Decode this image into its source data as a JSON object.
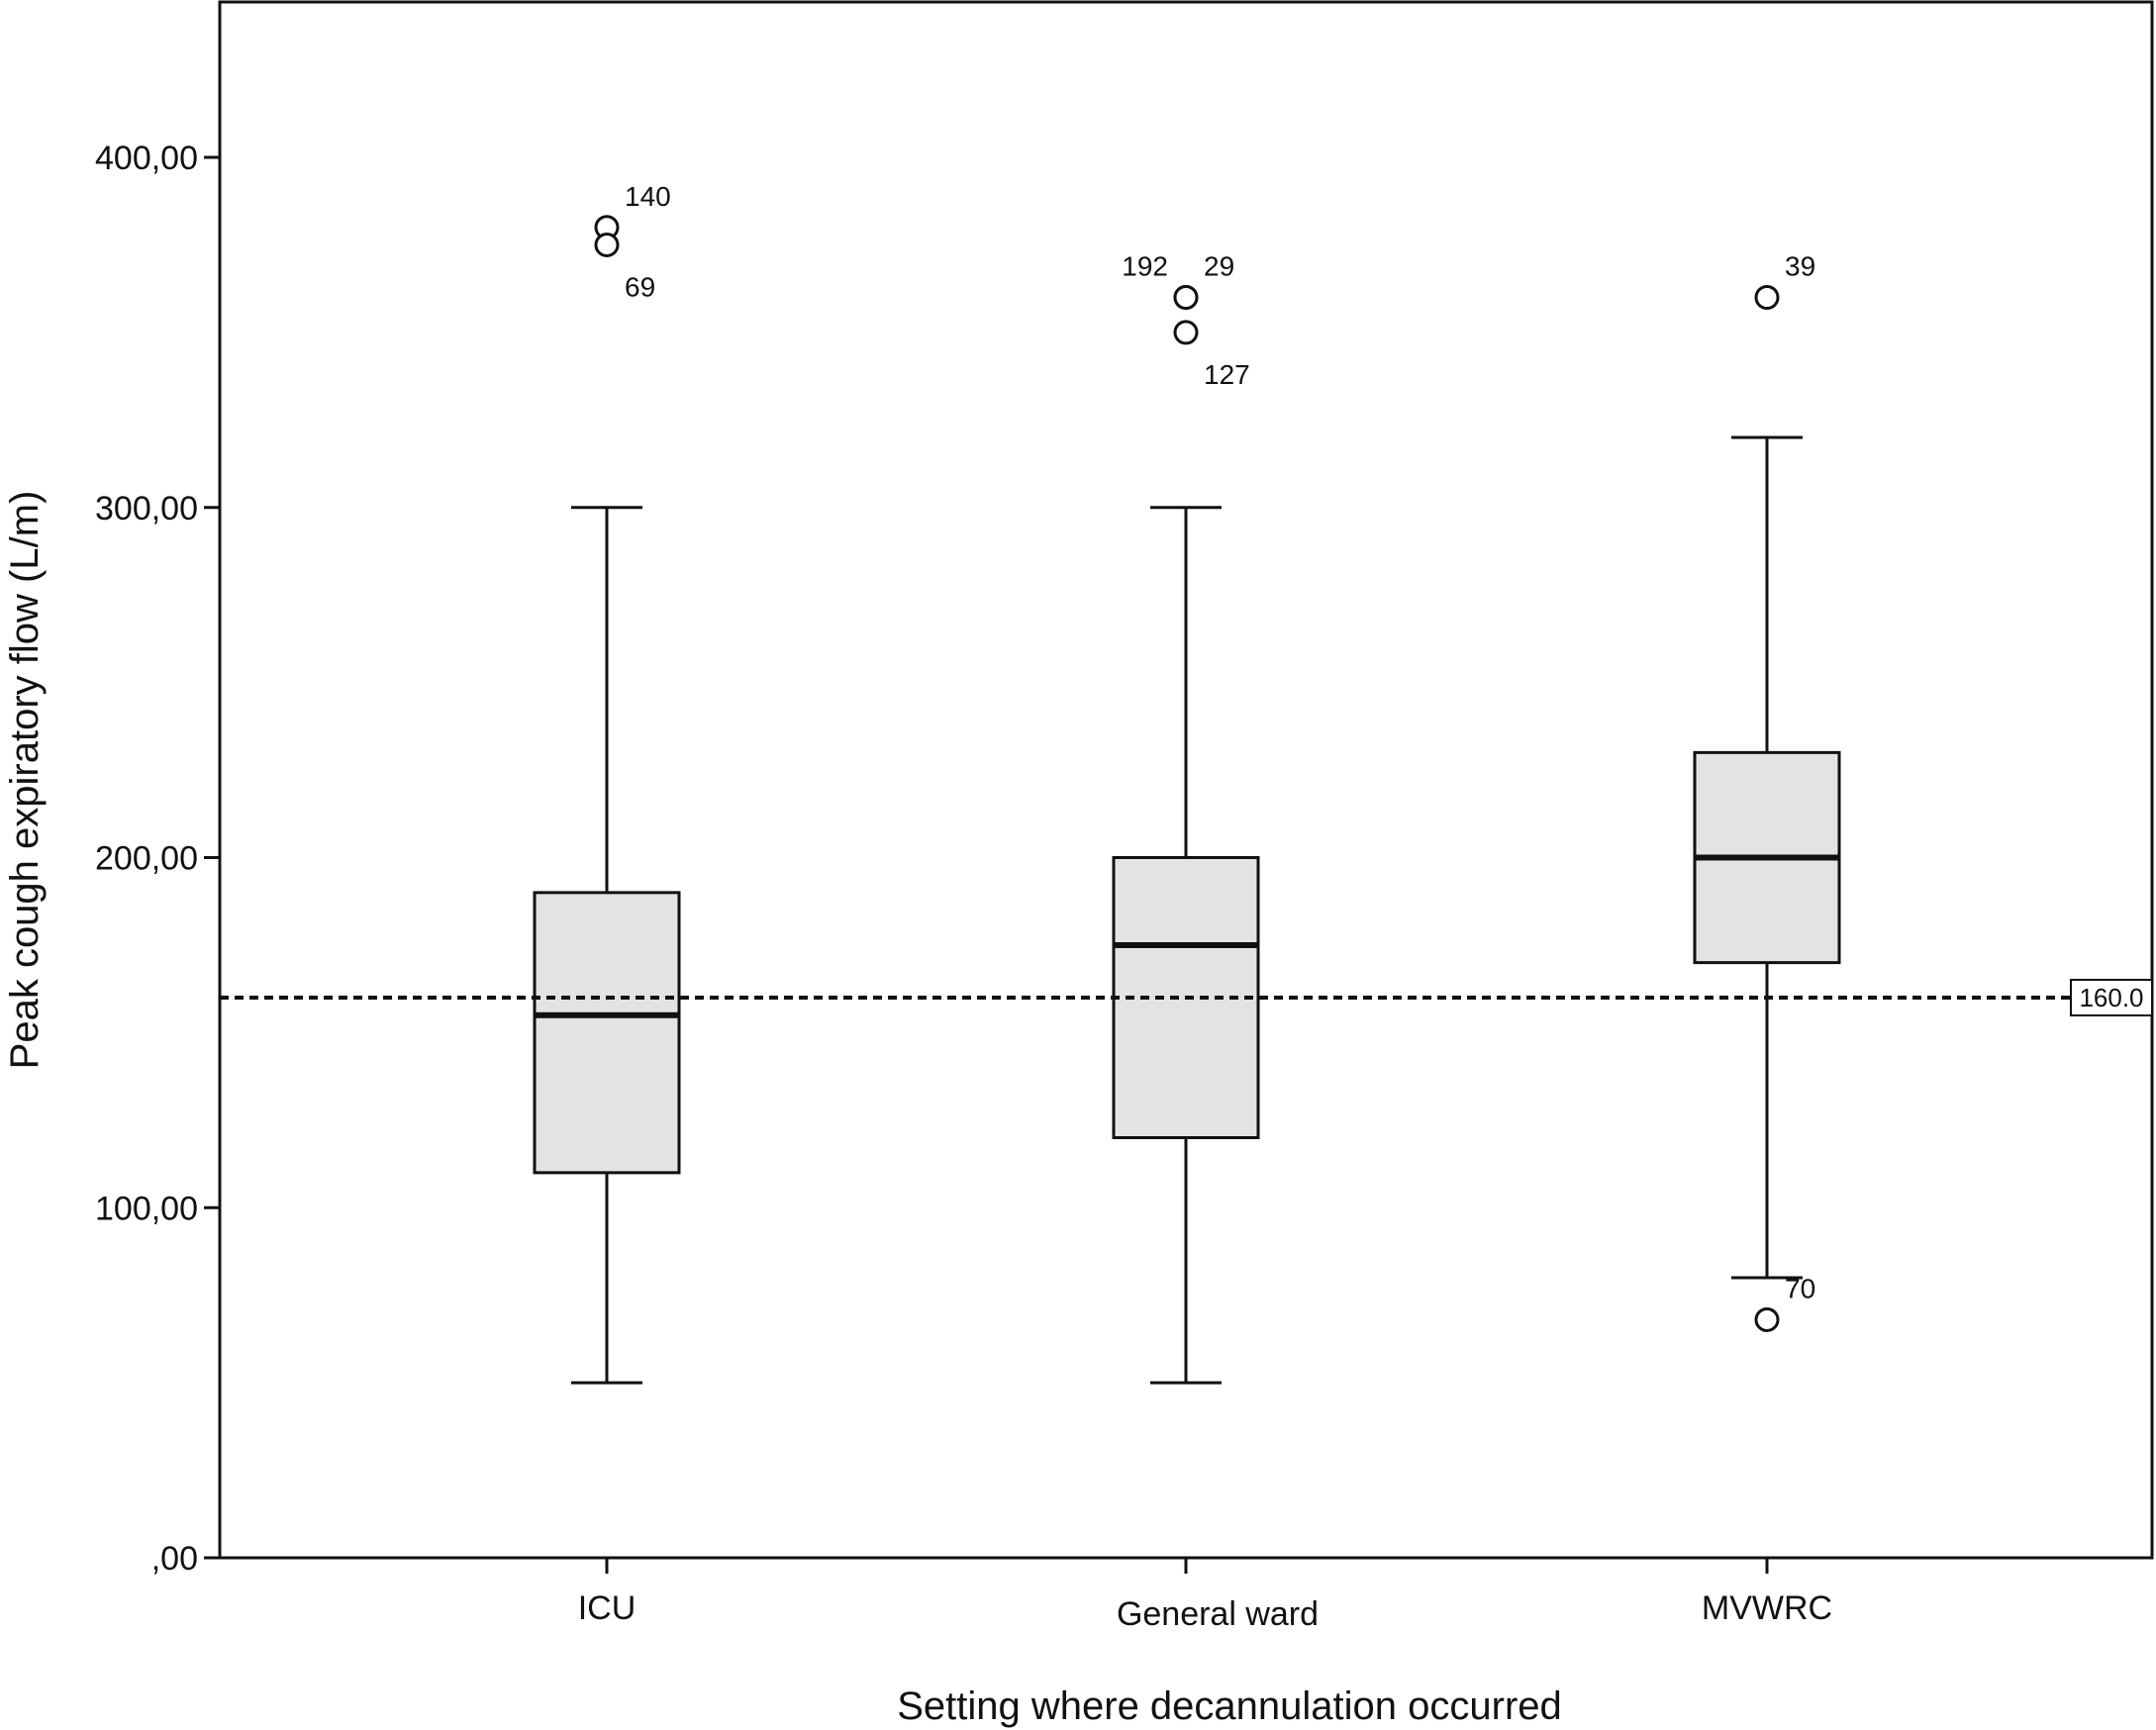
{
  "chart_data": {
    "type": "boxplot",
    "xlabel": "Setting where decannulation occurred",
    "ylabel": "Peak cough expiratory flow (L/m)",
    "ylim": [
      0,
      445
    ],
    "yticks": [
      0,
      100,
      200,
      300,
      400
    ],
    "ytick_labels": [
      ",00",
      "100,00",
      "200,00",
      "300,00",
      "400,00"
    ],
    "grid": false,
    "box_fill": "#e3e3e3",
    "line_color": "#111111",
    "categories": [
      "ICU",
      "General ward",
      "MVWRC"
    ],
    "boxes": [
      {
        "category": "ICU",
        "whisker_low": 50,
        "q1": 110,
        "median": 155,
        "q3": 190,
        "whisker_high": 300,
        "outliers": [
          {
            "value": 380,
            "label": "140",
            "label_pos": "upper-right"
          },
          {
            "value": 375,
            "label": "69",
            "label_pos": "lower-right"
          }
        ]
      },
      {
        "category": "General ward",
        "whisker_low": 50,
        "q1": 120,
        "median": 175,
        "q3": 200,
        "whisker_high": 300,
        "outliers": [
          {
            "value": 360,
            "label": "192",
            "label_pos": "upper-left"
          },
          {
            "value": 360,
            "label": "29",
            "label_pos": "upper-right"
          },
          {
            "value": 350,
            "label": "127",
            "label_pos": "lower-right"
          }
        ]
      },
      {
        "category": "MVWRC",
        "whisker_low": 80,
        "q1": 170,
        "median": 200,
        "q3": 230,
        "whisker_high": 320,
        "outliers": [
          {
            "value": 360,
            "label": "39",
            "label_pos": "upper-right"
          },
          {
            "value": 68,
            "label": "70",
            "label_pos": "upper-right"
          }
        ]
      }
    ],
    "reference_line": {
      "value": 160,
      "label": "160.0",
      "style": "dashed"
    }
  }
}
